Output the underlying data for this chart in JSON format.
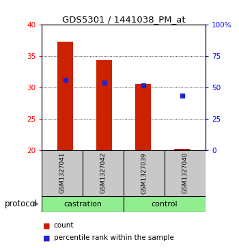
{
  "title": "GDS5301 / 1441038_PM_at",
  "samples": [
    "GSM1327041",
    "GSM1327042",
    "GSM1327039",
    "GSM1327040"
  ],
  "groups": [
    "castration",
    "castration",
    "control",
    "control"
  ],
  "bar_bottom": 20,
  "bar_tops": [
    37.3,
    34.4,
    30.5,
    20.2
  ],
  "percentile_ranks": [
    56.0,
    54.0,
    51.5,
    43.5
  ],
  "ylim_left": [
    20,
    40
  ],
  "ylim_right": [
    0,
    100
  ],
  "yticks_left": [
    20,
    25,
    30,
    35,
    40
  ],
  "yticks_right": [
    0,
    25,
    50,
    75,
    100
  ],
  "yticklabels_right": [
    "0",
    "25",
    "50",
    "75",
    "100%"
  ],
  "bar_color": "#CC2200",
  "dot_color": "#2222CC",
  "background_label": "#C8C8C8",
  "background_group": "#90EE90",
  "legend_count_label": "count",
  "legend_percentile_label": "percentile rank within the sample",
  "protocol_label": "protocol",
  "bar_width": 0.4
}
